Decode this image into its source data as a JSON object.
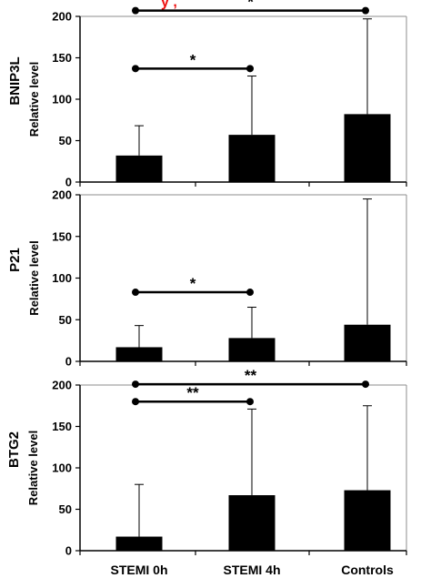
{
  "colors": {
    "bar": "#000000",
    "frame": "#8c8c8c",
    "axis": "#000000",
    "top_mark": "#ee1111"
  },
  "top_mark_text": "y ,",
  "chart_data": [
    {
      "type": "bar",
      "name": "BNIP3L",
      "ylabel": "Relative level",
      "ylim": [
        0,
        200
      ],
      "yticks": [
        0,
        50,
        100,
        150,
        200
      ],
      "categories": [
        "STEMI 0h",
        "STEMI 4h",
        "Controls"
      ],
      "values": [
        32,
        57,
        82
      ],
      "error_upper": [
        68,
        128,
        197
      ],
      "show_category_labels": false,
      "significance": [
        {
          "from": 0,
          "to": 1,
          "y": 137,
          "label": "*"
        },
        {
          "from": 0,
          "to": 2,
          "y": 207,
          "label": "*"
        }
      ]
    },
    {
      "type": "bar",
      "name": "P21",
      "ylabel": "Relative level",
      "ylim": [
        0,
        200
      ],
      "yticks": [
        0,
        50,
        100,
        150,
        200
      ],
      "categories": [
        "STEMI 0h",
        "STEMI 4h",
        "Controls"
      ],
      "values": [
        17,
        28,
        44
      ],
      "error_upper": [
        43,
        65,
        195
      ],
      "show_category_labels": false,
      "significance": [
        {
          "from": 0,
          "to": 1,
          "y": 83,
          "label": "*"
        }
      ]
    },
    {
      "type": "bar",
      "name": "BTG2",
      "ylabel": "Relative level",
      "ylim": [
        0,
        200
      ],
      "yticks": [
        0,
        50,
        100,
        150,
        200
      ],
      "categories": [
        "STEMI 0h",
        "STEMI 4h",
        "Controls"
      ],
      "values": [
        17,
        67,
        73
      ],
      "error_upper": [
        80,
        171,
        175
      ],
      "show_category_labels": true,
      "significance": [
        {
          "from": 0,
          "to": 1,
          "y": 180,
          "label": "**"
        },
        {
          "from": 0,
          "to": 2,
          "y": 201,
          "label": "**"
        }
      ]
    }
  ]
}
